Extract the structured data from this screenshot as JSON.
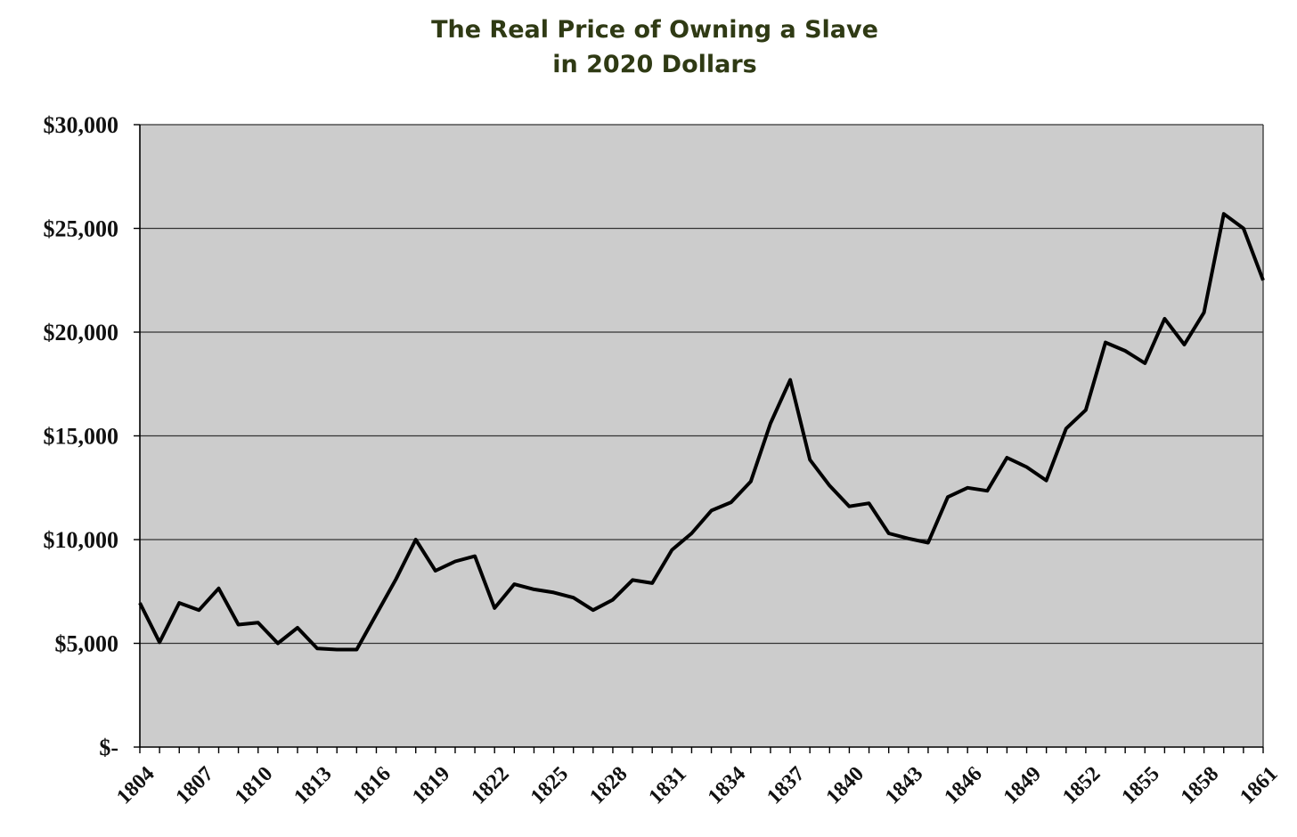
{
  "chart_data": {
    "type": "line",
    "title_line1": "The Real Price of Owning a Slave",
    "title_line2": "in 2020 Dollars",
    "xlabel": "",
    "ylabel": "",
    "ylim": [
      0,
      30000
    ],
    "y_ticks": [
      0,
      5000,
      10000,
      15000,
      20000,
      25000,
      30000
    ],
    "y_tick_labels": [
      "$-",
      "$5,000",
      "$10,000",
      "$15,000",
      "$20,000",
      "$25,000",
      "$30,000"
    ],
    "x_tick_labels": [
      "1804",
      "1807",
      "1810",
      "1813",
      "1816",
      "1819",
      "1822",
      "1825",
      "1828",
      "1831",
      "1834",
      "1837",
      "1840",
      "1843",
      "1846",
      "1849",
      "1852",
      "1855",
      "1858",
      "1861"
    ],
    "grid": true,
    "background_color": "#cccccc",
    "line_color": "#000000",
    "series": [
      {
        "x": [
          1804,
          1805,
          1806,
          1807,
          1808,
          1809,
          1810,
          1811,
          1812,
          1813,
          1814,
          1815,
          1816,
          1817,
          1818,
          1819,
          1820,
          1821,
          1822,
          1823,
          1824,
          1825,
          1826,
          1827,
          1828,
          1829,
          1830,
          1831,
          1832,
          1833,
          1834,
          1835,
          1836,
          1837,
          1838,
          1839,
          1840,
          1841,
          1842,
          1843,
          1844,
          1845,
          1846,
          1847,
          1848,
          1849,
          1850,
          1851,
          1852,
          1853,
          1854,
          1855,
          1856,
          1857,
          1858,
          1859,
          1860,
          1861
        ],
        "values": [
          6950,
          5050,
          6950,
          6600,
          7650,
          5900,
          6000,
          5000,
          5750,
          4750,
          4700,
          4700,
          6400,
          8100,
          10000,
          8500,
          8950,
          9200,
          6700,
          7850,
          7600,
          7450,
          7200,
          6600,
          7100,
          8050,
          7900,
          9500,
          10300,
          11400,
          11800,
          12800,
          15600,
          17700,
          13850,
          12600,
          11600,
          11750,
          10300,
          10050,
          9850,
          12050,
          12500,
          12350,
          13950,
          13500,
          12850,
          15350,
          16250,
          19500,
          19100,
          18500,
          20650,
          19400,
          20950,
          25700,
          25000,
          22500
        ]
      }
    ]
  }
}
